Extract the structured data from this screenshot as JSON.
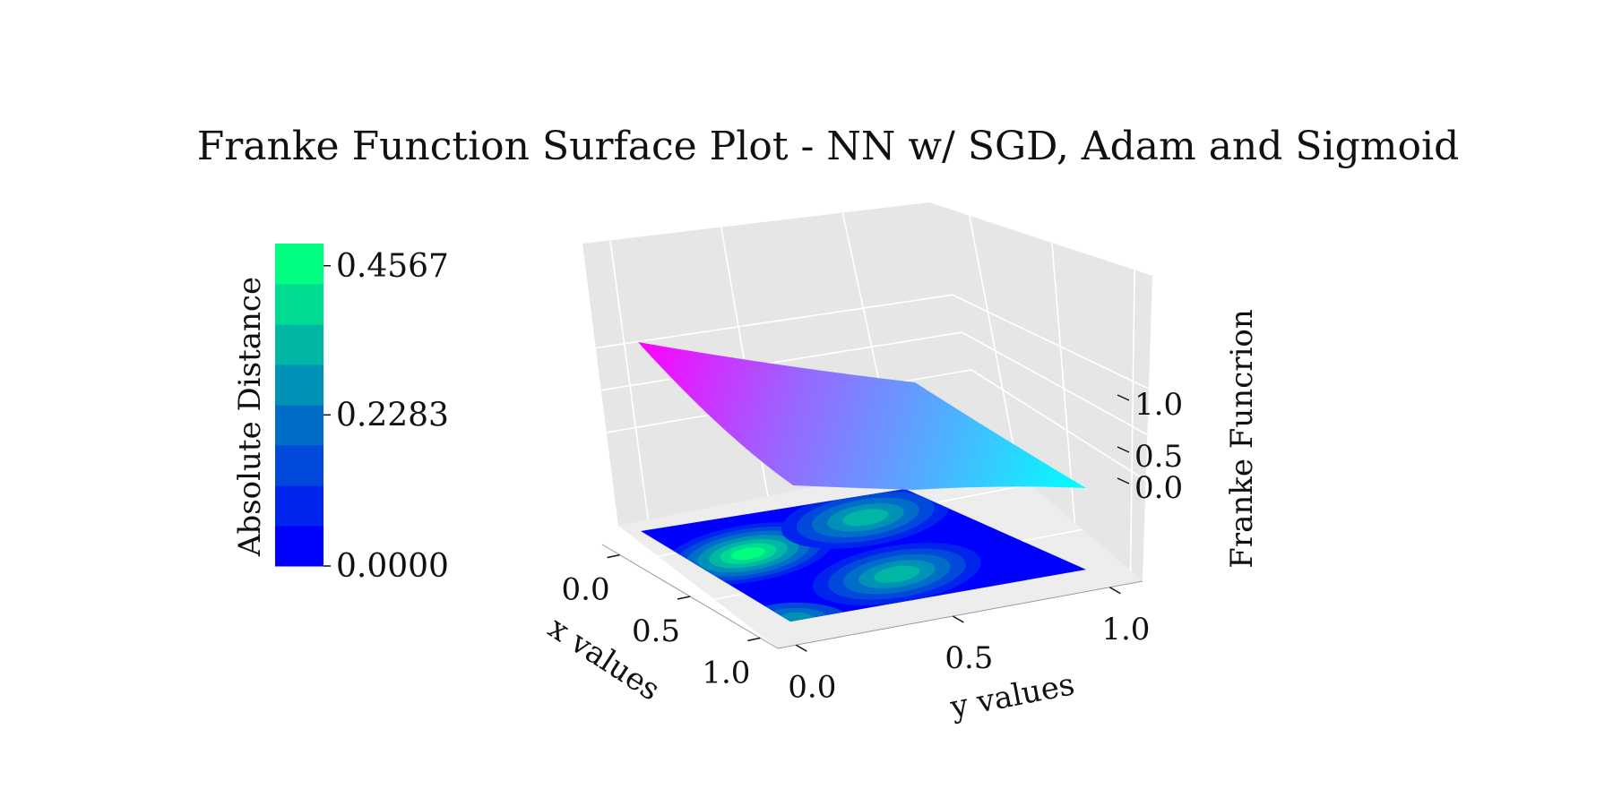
{
  "chart_data": {
    "type": "surface3d",
    "title": "Franke Function Surface Plot - NN w/ SGD, Adam and Sigmoid",
    "xlabel": "x values",
    "ylabel": "y values",
    "zlabel": "Franke Funcrion",
    "x_ticks": [
      "0.0",
      "0.5",
      "1.0"
    ],
    "y_ticks": [
      "0.0",
      "0.5",
      "1.0"
    ],
    "z_ticks": [
      "0.0",
      "0.5",
      "1.0"
    ],
    "xlim": [
      0,
      1
    ],
    "ylim": [
      0,
      1
    ],
    "surface": {
      "name": "",
      "colormap": "cool",
      "corner_values": {
        "x0_y0": 1.07,
        "x1_y0": 0.1,
        "x0_y1": 0.47,
        "x1_y1": 0.12
      }
    },
    "error_contour": {
      "colormap": "winter",
      "levels": 8,
      "vmin": 0.0,
      "vmax": 0.4567,
      "peaks": [
        {
          "x": 0.35,
          "y": 0.2,
          "value": 0.4567
        },
        {
          "x": 0.75,
          "y": 0.5,
          "value": 0.3
        },
        {
          "x": 0.2,
          "y": 0.72,
          "value": 0.3
        }
      ]
    },
    "colorbar": {
      "label": "Absolute Distance",
      "ticks": [
        "0.0000",
        "0.2283",
        "0.4567"
      ],
      "colors": [
        "#0000ff",
        "#0024ed",
        "#0049db",
        "#006dc9",
        "#0092b6",
        "#00b6a4",
        "#00db92",
        "#00ff80"
      ]
    },
    "pane_color": "#e6e6e6",
    "grid": true
  }
}
